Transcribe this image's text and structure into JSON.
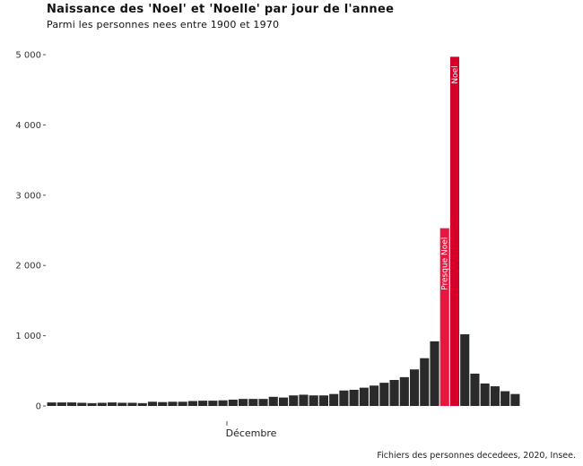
{
  "chart_data": {
    "type": "bar",
    "title": "Naissance des 'Noel' et 'Noelle' par jour de l'annee",
    "subtitle": "Parmi les personnes nees entre 1900 et 1970",
    "caption": "Fichiers des personnes decedees, 2020, Insee.",
    "xlabel": "Décembre",
    "ylabel": "",
    "ylim": [
      0,
      5000
    ],
    "yticks": [
      0,
      1000,
      2000,
      3000,
      4000,
      5000
    ],
    "ytick_labels": [
      "0",
      "1 000",
      "2 000",
      "3 000",
      "4 000",
      "5 000"
    ],
    "grid": false,
    "colors": {
      "default": "#2a2a2a",
      "presque": "#e8173f",
      "noel": "#d4002a"
    },
    "values": [
      50,
      50,
      50,
      45,
      40,
      45,
      50,
      45,
      45,
      40,
      60,
      55,
      60,
      60,
      70,
      75,
      75,
      80,
      90,
      100,
      100,
      100,
      130,
      120,
      150,
      160,
      150,
      150,
      170,
      220,
      230,
      260,
      290,
      330,
      370,
      410,
      520,
      680,
      920,
      2530,
      4970,
      1020,
      460,
      320,
      280,
      210,
      170
    ],
    "highlights": [
      {
        "index": 39,
        "label": "Presque Noel",
        "color_key": "presque"
      },
      {
        "index": 40,
        "label": "Noel",
        "color_key": "noel"
      }
    ]
  }
}
